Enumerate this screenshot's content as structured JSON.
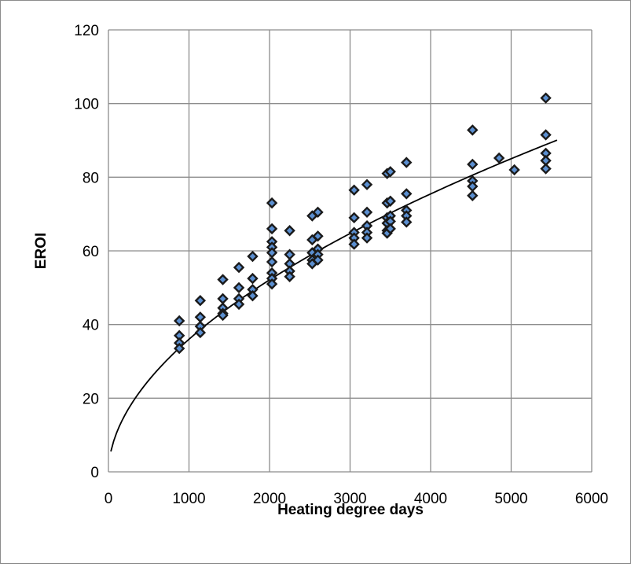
{
  "chart_data": {
    "type": "scatter",
    "title": "",
    "xlabel": "Heating degree days",
    "ylabel": "EROI",
    "xlim": [
      0,
      6000
    ],
    "ylim": [
      0,
      120
    ],
    "xticks": [
      0,
      1000,
      2000,
      3000,
      4000,
      5000,
      6000
    ],
    "yticks": [
      0,
      20,
      40,
      60,
      80,
      100,
      120
    ],
    "grid": true,
    "legend": "none",
    "colors": {
      "marker_fill": "#5b8fd0",
      "marker_edge": "#1a1a1a",
      "trendline": "#000000",
      "grid": "#8c8c8c"
    },
    "series": [
      {
        "marker": "diamond",
        "points": [
          [
            880,
            41.0
          ],
          [
            880,
            37.0
          ],
          [
            880,
            35.0
          ],
          [
            880,
            33.5
          ],
          [
            1140,
            46.5
          ],
          [
            1140,
            42.0
          ],
          [
            1140,
            39.5
          ],
          [
            1140,
            37.8
          ],
          [
            1420,
            52.2
          ],
          [
            1420,
            47.0
          ],
          [
            1420,
            44.5
          ],
          [
            1420,
            43.0
          ],
          [
            1420,
            42.5
          ],
          [
            1620,
            55.5
          ],
          [
            1620,
            50.0
          ],
          [
            1620,
            47.0
          ],
          [
            1620,
            45.5
          ],
          [
            1790,
            58.5
          ],
          [
            1790,
            52.5
          ],
          [
            1790,
            49.5
          ],
          [
            1790,
            47.8
          ],
          [
            2030,
            73.0
          ],
          [
            2030,
            66.0
          ],
          [
            2030,
            62.5
          ],
          [
            2030,
            61.0
          ],
          [
            2030,
            59.5
          ],
          [
            2030,
            57.0
          ],
          [
            2030,
            54.0
          ],
          [
            2030,
            52.5
          ],
          [
            2030,
            51.0
          ],
          [
            2250,
            65.5
          ],
          [
            2250,
            59.0
          ],
          [
            2250,
            56.5
          ],
          [
            2250,
            54.5
          ],
          [
            2250,
            53.0
          ],
          [
            2530,
            69.5
          ],
          [
            2530,
            63.0
          ],
          [
            2530,
            59.5
          ],
          [
            2530,
            57.5
          ],
          [
            2530,
            56.5
          ],
          [
            2600,
            70.5
          ],
          [
            2600,
            64.0
          ],
          [
            2600,
            60.5
          ],
          [
            2600,
            59.0
          ],
          [
            2600,
            57.5
          ],
          [
            3050,
            76.5
          ],
          [
            3050,
            69.0
          ],
          [
            3050,
            65.0
          ],
          [
            3050,
            63.5
          ],
          [
            3050,
            61.8
          ],
          [
            3210,
            78.0
          ],
          [
            3210,
            70.5
          ],
          [
            3210,
            66.8
          ],
          [
            3210,
            65.0
          ],
          [
            3210,
            63.5
          ],
          [
            3460,
            81.0
          ],
          [
            3460,
            73.0
          ],
          [
            3460,
            69.0
          ],
          [
            3460,
            67.5
          ],
          [
            3460,
            65.5
          ],
          [
            3460,
            64.8
          ],
          [
            3500,
            81.5
          ],
          [
            3500,
            73.5
          ],
          [
            3500,
            69.5
          ],
          [
            3500,
            68.0
          ],
          [
            3500,
            66.0
          ],
          [
            3700,
            84.0
          ],
          [
            3700,
            75.5
          ],
          [
            3700,
            71.0
          ],
          [
            3700,
            69.5
          ],
          [
            3700,
            67.8
          ],
          [
            4520,
            92.8
          ],
          [
            4520,
            83.5
          ],
          [
            4520,
            79.0
          ],
          [
            4520,
            77.5
          ],
          [
            4520,
            75.0
          ],
          [
            4850,
            85.2
          ],
          [
            5040,
            82.0
          ],
          [
            5430,
            101.5
          ],
          [
            5430,
            91.5
          ],
          [
            5430,
            86.5
          ],
          [
            5430,
            84.5
          ],
          [
            5430,
            82.3
          ]
        ]
      }
    ],
    "trendline": {
      "type": "power",
      "a": 0.9,
      "b": 0.534,
      "x_range": [
        30,
        5570
      ]
    }
  }
}
